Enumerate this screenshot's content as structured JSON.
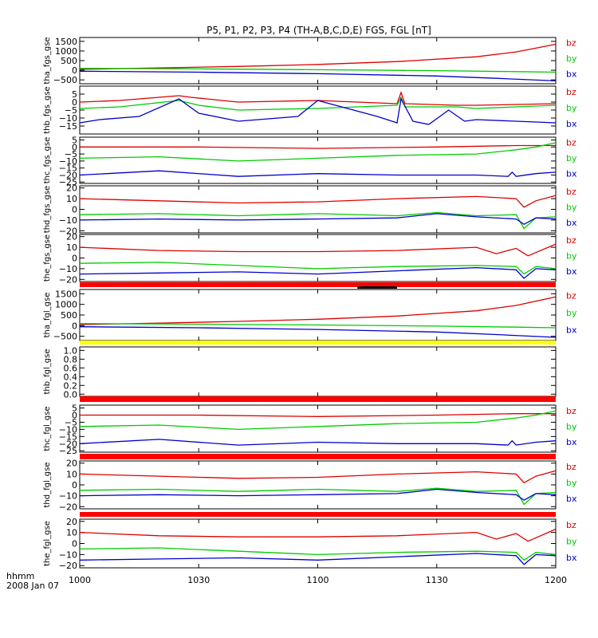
{
  "page_title": "P5, P1, P2, P3, P4 (TH-A,B,C,D,E) FGS, FGL [nT]",
  "time_axis": {
    "label_line1": "hhmm",
    "label_line2": "2008 Jan 07",
    "ticks": [
      "1000",
      "1030",
      "1100",
      "1130",
      "1200"
    ],
    "range_minutes": [
      0,
      120
    ],
    "tick_minutes": [
      0,
      30,
      60,
      90,
      120
    ]
  },
  "colors": {
    "bx": "#0000cc",
    "by": "#00cc00",
    "bz": "#dd0000",
    "bar_red": "#ff0000",
    "bar_yellow": "#ffff00",
    "bar_black": "#000000",
    "axis": "#000000"
  },
  "legend_labels": [
    "bz",
    "by",
    "bx"
  ],
  "chart_data": [
    {
      "type": "line",
      "ylabel": "tha_fgs_gse",
      "ylim": [
        -700,
        1700
      ],
      "yticks": [
        1500,
        1000,
        500,
        0,
        -500
      ],
      "ytick_labels": [
        "1500",
        "1000",
        "500",
        "0",
        "−500"
      ],
      "series": [
        {
          "name": "bz",
          "x": [
            0,
            20,
            40,
            60,
            80,
            100,
            110,
            120
          ],
          "values": [
            50,
            120,
            200,
            300,
            450,
            700,
            950,
            1350
          ]
        },
        {
          "name": "by",
          "x": [
            0,
            30,
            60,
            90,
            110,
            120
          ],
          "values": [
            100,
            70,
            30,
            -20,
            -70,
            -100
          ]
        },
        {
          "name": "bx",
          "x": [
            0,
            30,
            60,
            90,
            105,
            120
          ],
          "values": [
            -50,
            -100,
            -180,
            -300,
            -420,
            -550
          ]
        }
      ]
    },
    {
      "type": "line",
      "ylabel": "thb_fgs_gse",
      "ylim": [
        -20,
        10
      ],
      "yticks": [
        5,
        0,
        -5,
        -10,
        -15
      ],
      "ytick_labels": [
        "5",
        "0",
        "−5",
        "−10",
        "−15"
      ],
      "series": [
        {
          "name": "bz",
          "x": [
            0,
            10,
            25,
            28,
            40,
            60,
            80,
            81,
            82,
            95,
            100,
            120
          ],
          "values": [
            0,
            1,
            4,
            3,
            0,
            1,
            -1,
            6,
            -1,
            -2,
            -2,
            -1
          ]
        },
        {
          "name": "by",
          "x": [
            0,
            10,
            25,
            30,
            40,
            60,
            80,
            81,
            82,
            95,
            100,
            120
          ],
          "values": [
            -4,
            -3,
            1,
            -2,
            -5,
            -4,
            -2,
            3,
            -3,
            -3,
            -4,
            -2
          ]
        },
        {
          "name": "bx",
          "x": [
            0,
            5,
            15,
            25,
            30,
            40,
            55,
            60,
            75,
            80,
            81,
            84,
            88,
            93,
            97,
            100,
            110,
            120
          ],
          "values": [
            -13,
            -11,
            -9,
            2,
            -7,
            -12,
            -9,
            1,
            -9,
            -13,
            2,
            -12,
            -14,
            -5,
            -12,
            -11,
            -12,
            -13
          ]
        }
      ]
    },
    {
      "type": "line",
      "ylabel": "thc_fgs_gse",
      "ylim": [
        -26,
        7
      ],
      "yticks": [
        5,
        0,
        -5,
        -10,
        -15,
        -20,
        -25
      ],
      "ytick_labels": [
        "5",
        "0",
        "−5",
        "−10",
        "−15",
        "−20",
        "−25"
      ],
      "series": [
        {
          "name": "bz",
          "x": [
            0,
            30,
            60,
            90,
            110,
            120
          ],
          "values": [
            0,
            0,
            -1,
            0,
            1,
            1
          ]
        },
        {
          "name": "by",
          "x": [
            0,
            20,
            40,
            60,
            80,
            100,
            110,
            115,
            120
          ],
          "values": [
            -8,
            -7,
            -10,
            -8,
            -6,
            -5,
            -2,
            0,
            3
          ]
        },
        {
          "name": "bx",
          "x": [
            0,
            20,
            40,
            60,
            80,
            100,
            108,
            109,
            110,
            115,
            120
          ],
          "values": [
            -20,
            -17,
            -21,
            -19,
            -20,
            -20,
            -21,
            -18,
            -21,
            -19,
            -18
          ]
        }
      ]
    },
    {
      "type": "line",
      "ylabel": "thd_fgs_gse",
      "ylim": [
        -22,
        22
      ],
      "yticks": [
        20,
        10,
        0,
        -10,
        -20
      ],
      "ytick_labels": [
        "20",
        "10",
        "0",
        "−10",
        "−20"
      ],
      "series": [
        {
          "name": "bz",
          "x": [
            0,
            20,
            40,
            60,
            80,
            100,
            110,
            112,
            115,
            120
          ],
          "values": [
            10,
            8,
            6,
            7,
            10,
            12,
            10,
            2,
            8,
            13
          ]
        },
        {
          "name": "by",
          "x": [
            0,
            20,
            40,
            60,
            80,
            90,
            100,
            110,
            112,
            115,
            120
          ],
          "values": [
            -5,
            -4,
            -6,
            -4,
            -6,
            -3,
            -6,
            -5,
            -18,
            -8,
            -7
          ]
        },
        {
          "name": "bx",
          "x": [
            0,
            20,
            40,
            60,
            80,
            90,
            100,
            110,
            112,
            115,
            120
          ],
          "values": [
            -10,
            -9,
            -10,
            -9,
            -8,
            -4,
            -7,
            -9,
            -14,
            -8,
            -9
          ]
        }
      ]
    },
    {
      "type": "line",
      "ylabel": "the_fgs_gse",
      "ylim": [
        -22,
        22
      ],
      "yticks": [
        20,
        10,
        0,
        -10,
        -20
      ],
      "ytick_labels": [
        "20",
        "10",
        "0",
        "−10",
        "−20"
      ],
      "series": [
        {
          "name": "bz",
          "x": [
            0,
            20,
            40,
            60,
            80,
            100,
            105,
            110,
            113,
            120
          ],
          "values": [
            10,
            7,
            6,
            6,
            7,
            10,
            4,
            9,
            2,
            13
          ]
        },
        {
          "name": "by",
          "x": [
            0,
            20,
            40,
            60,
            80,
            100,
            110,
            112,
            115,
            120
          ],
          "values": [
            -5,
            -4,
            -7,
            -10,
            -8,
            -7,
            -8,
            -15,
            -8,
            -10
          ]
        },
        {
          "name": "bx",
          "x": [
            0,
            20,
            40,
            60,
            80,
            100,
            110,
            112,
            115,
            120
          ],
          "values": [
            -15,
            -14,
            -13,
            -15,
            -12,
            -9,
            -11,
            -19,
            -10,
            -11
          ]
        }
      ]
    },
    {
      "type": "line",
      "ylabel": "tha_fgl_gse",
      "ylim": [
        -700,
        1700
      ],
      "yticks": [
        1500,
        1000,
        500,
        0,
        -500
      ],
      "ytick_labels": [
        "1500",
        "1000",
        "500",
        "0",
        "−500"
      ],
      "series": [
        {
          "name": "bz",
          "x": [
            0,
            20,
            40,
            60,
            80,
            100,
            110,
            120
          ],
          "values": [
            50,
            120,
            200,
            300,
            450,
            700,
            950,
            1350
          ]
        },
        {
          "name": "by",
          "x": [
            0,
            30,
            60,
            90,
            110,
            120
          ],
          "values": [
            100,
            70,
            30,
            -20,
            -70,
            -100
          ]
        },
        {
          "name": "bx",
          "x": [
            0,
            30,
            60,
            90,
            105,
            120
          ],
          "values": [
            -50,
            -100,
            -180,
            -300,
            -420,
            -550
          ]
        }
      ]
    },
    {
      "type": "line",
      "ylabel": "thb_fgl_gse",
      "ylim": [
        -0.05,
        1.08
      ],
      "yticks": [
        1.0,
        0.8,
        0.6,
        0.4,
        0.2,
        0.0
      ],
      "ytick_labels": [
        "1.0",
        "0.8",
        "0.6",
        "0.4",
        "0.2",
        "0.0"
      ],
      "series": []
    },
    {
      "type": "line",
      "ylabel": "thc_fgl_gse",
      "ylim": [
        -26,
        7
      ],
      "yticks": [
        5,
        0,
        -5,
        -10,
        -15,
        -20,
        -25
      ],
      "ytick_labels": [
        "5",
        "0",
        "−5",
        "−10",
        "−15",
        "−20",
        "−25"
      ],
      "series": [
        {
          "name": "bz",
          "x": [
            0,
            30,
            60,
            90,
            110,
            120
          ],
          "values": [
            0,
            0,
            -1,
            0,
            1,
            1
          ]
        },
        {
          "name": "by",
          "x": [
            0,
            20,
            40,
            60,
            80,
            100,
            110,
            115,
            120
          ],
          "values": [
            -8,
            -7,
            -10,
            -8,
            -6,
            -5,
            -2,
            0,
            3
          ]
        },
        {
          "name": "bx",
          "x": [
            0,
            20,
            40,
            60,
            80,
            100,
            108,
            109,
            110,
            115,
            120
          ],
          "values": [
            -20,
            -17,
            -21,
            -19,
            -20,
            -20,
            -21,
            -18,
            -21,
            -19,
            -18
          ]
        }
      ]
    },
    {
      "type": "line",
      "ylabel": "thd_fgl_gse",
      "ylim": [
        -22,
        22
      ],
      "yticks": [
        20,
        10,
        0,
        -10,
        -20
      ],
      "ytick_labels": [
        "20",
        "10",
        "0",
        "−10",
        "−20"
      ],
      "series": [
        {
          "name": "bz",
          "x": [
            0,
            20,
            40,
            60,
            80,
            100,
            110,
            112,
            115,
            120
          ],
          "values": [
            10,
            8,
            6,
            7,
            10,
            12,
            10,
            2,
            8,
            13
          ]
        },
        {
          "name": "by",
          "x": [
            0,
            20,
            40,
            60,
            80,
            90,
            100,
            110,
            112,
            115,
            120
          ],
          "values": [
            -5,
            -4,
            -6,
            -4,
            -6,
            -3,
            -6,
            -5,
            -18,
            -8,
            -7
          ]
        },
        {
          "name": "bx",
          "x": [
            0,
            20,
            40,
            60,
            80,
            90,
            100,
            110,
            112,
            115,
            120
          ],
          "values": [
            -10,
            -9,
            -10,
            -9,
            -8,
            -4,
            -7,
            -9,
            -14,
            -8,
            -9
          ]
        }
      ]
    },
    {
      "type": "line",
      "ylabel": "the_fgl_gse",
      "ylim": [
        -22,
        22
      ],
      "yticks": [
        20,
        10,
        0,
        -10,
        -20
      ],
      "ytick_labels": [
        "20",
        "10",
        "0",
        "−10",
        "−20"
      ],
      "series": [
        {
          "name": "bz",
          "x": [
            0,
            20,
            40,
            60,
            80,
            100,
            105,
            110,
            113,
            120
          ],
          "values": [
            10,
            7,
            6,
            6,
            7,
            10,
            4,
            9,
            2,
            13
          ]
        },
        {
          "name": "by",
          "x": [
            0,
            20,
            40,
            60,
            80,
            100,
            110,
            112,
            115,
            120
          ],
          "values": [
            -5,
            -4,
            -7,
            -10,
            -8,
            -7,
            -8,
            -15,
            -8,
            -10
          ]
        },
        {
          "name": "bx",
          "x": [
            0,
            20,
            40,
            60,
            80,
            100,
            110,
            112,
            115,
            120
          ],
          "values": [
            -15,
            -14,
            -13,
            -15,
            -12,
            -9,
            -11,
            -19,
            -10,
            -11
          ]
        }
      ]
    }
  ],
  "status_bars": [
    {
      "color": "bar_red",
      "segments": [
        [
          0,
          120
        ]
      ]
    },
    {
      "color": "bar_black",
      "segments": [
        [
          70,
          80
        ]
      ]
    },
    {
      "color": "bar_yellow",
      "segments": [
        [
          0,
          120
        ]
      ]
    },
    {
      "color": "bar_red",
      "segments": [
        [
          0,
          120
        ]
      ]
    },
    {
      "color": "bar_red",
      "segments": [
        [
          0,
          120
        ]
      ]
    },
    {
      "color": "bar_red",
      "segments": [
        [
          0,
          120
        ]
      ]
    }
  ]
}
